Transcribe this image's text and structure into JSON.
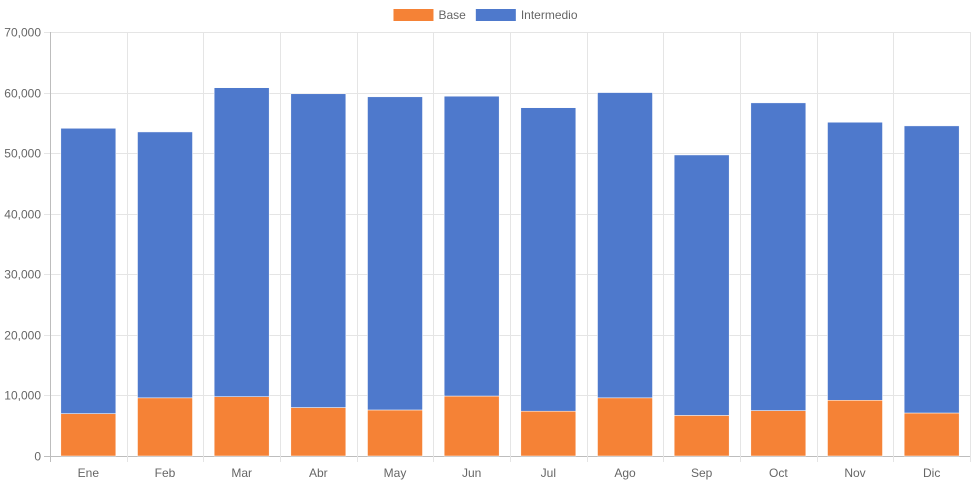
{
  "chart_data": {
    "type": "bar",
    "stacked": true,
    "categories": [
      "Ene",
      "Feb",
      "Mar",
      "Abr",
      "May",
      "Jun",
      "Jul",
      "Ago",
      "Sep",
      "Oct",
      "Nov",
      "Dic"
    ],
    "series": [
      {
        "name": "Base",
        "color": "#f58236",
        "values": [
          7000,
          9600,
          9800,
          8000,
          7600,
          9900,
          7400,
          9600,
          6700,
          7500,
          9200,
          7100
        ]
      },
      {
        "name": "Intermedio",
        "color": "#4e79cc",
        "values": [
          47100,
          43900,
          51000,
          51800,
          51700,
          49500,
          50100,
          50400,
          43000,
          50800,
          45900,
          47400
        ]
      }
    ],
    "yticks": [
      "0",
      "10,000",
      "20,000",
      "30,000",
      "40,000",
      "50,000",
      "60,000",
      "70,000"
    ],
    "ylim": [
      0,
      70000
    ],
    "grid": true,
    "legend_position": "top-center"
  }
}
